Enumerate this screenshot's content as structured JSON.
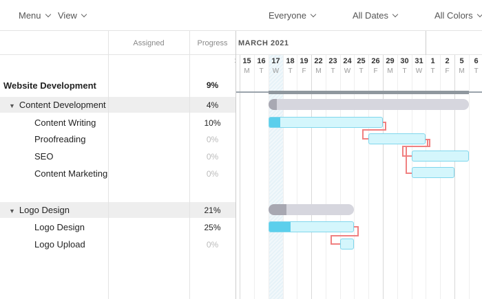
{
  "toolbar": {
    "menu": "Menu",
    "view": "View",
    "everyone": "Everyone",
    "all_dates": "All Dates",
    "all_colors": "All Colors"
  },
  "columns": {
    "assigned": "Assigned",
    "progress": "Progress"
  },
  "timeline": {
    "month": "MARCH 2021",
    "days": [
      {
        "d": "15",
        "w": "M"
      },
      {
        "d": "16",
        "w": "T"
      },
      {
        "d": "17",
        "w": "W"
      },
      {
        "d": "18",
        "w": "T"
      },
      {
        "d": "19",
        "w": "F"
      },
      {
        "d": "22",
        "w": "M"
      },
      {
        "d": "23",
        "w": "T"
      },
      {
        "d": "24",
        "w": "W"
      },
      {
        "d": "25",
        "w": "T"
      },
      {
        "d": "26",
        "w": "F"
      },
      {
        "d": "29",
        "w": "M"
      },
      {
        "d": "30",
        "w": "T"
      },
      {
        "d": "31",
        "w": "W"
      },
      {
        "d": "1",
        "w": "T"
      },
      {
        "d": "2",
        "w": "F"
      },
      {
        "d": "5",
        "w": "M"
      },
      {
        "d": "6",
        "w": "T"
      }
    ],
    "today": "17"
  },
  "rows": [
    {
      "name": "Website Development",
      "progress": "9%",
      "type": "project"
    },
    {
      "name": "Content Development",
      "progress": "4%",
      "type": "group"
    },
    {
      "name": "Content Writing",
      "progress": "10%",
      "type": "task"
    },
    {
      "name": "Proofreading",
      "progress": "0%",
      "type": "task"
    },
    {
      "name": "SEO",
      "progress": "0%",
      "type": "task"
    },
    {
      "name": "Content Marketing",
      "progress": "0%",
      "type": "task"
    },
    {
      "name": "Logo Design",
      "progress": "21%",
      "type": "group"
    },
    {
      "name": "Logo Design",
      "progress": "25%",
      "type": "task"
    },
    {
      "name": "Logo Upload",
      "progress": "0%",
      "type": "task"
    }
  ],
  "colors": {
    "bar": "#d4f6fc",
    "bar_fill": "#5ccfec",
    "group": "#d6d6de",
    "dependency": "#f08080"
  }
}
